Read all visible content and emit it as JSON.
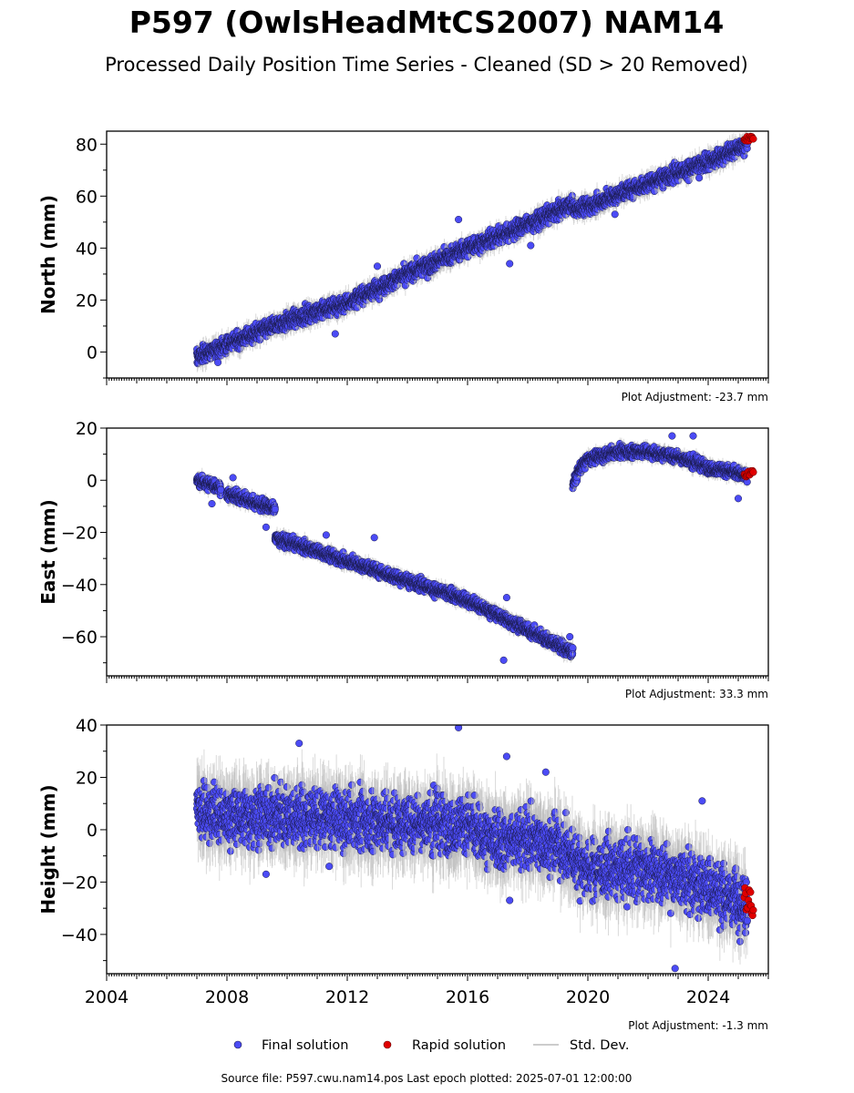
{
  "title": "P597 (OwlsHeadMtCS2007) NAM14",
  "subtitle": "Processed Daily Position Time Series - Cleaned (SD > 20 Removed)",
  "colors": {
    "final": "#4b4bf5",
    "final_edge": "#1a1a4a",
    "rapid": "#e00000",
    "stddev": "#bbbbbb"
  },
  "legend": {
    "final": "Final solution",
    "rapid": "Rapid solution",
    "stddev": "Std. Dev."
  },
  "footer": "Source file: P597.cwu.nam14.pos  Last epoch plotted: 2025-07-01 12:00:00",
  "chart_data": [
    {
      "type": "scatter",
      "ylabel": "North (mm)",
      "adjustment": "Plot Adjustment: -23.7 mm",
      "xlim": [
        2004,
        2026
      ],
      "ylim": [
        -10,
        85
      ],
      "yticks": [
        0,
        20,
        40,
        60,
        80
      ],
      "xticks": [
        2004,
        2008,
        2012,
        2016,
        2020,
        2024
      ],
      "show_xticklabels": false,
      "series": [
        {
          "segments": [
            {
              "x": [
                2007.0,
                2008.0,
                2010.0,
                2012.0,
                2014.0,
                2016.0,
                2018.0,
                2019.5
              ],
              "y": [
                -2,
                3,
                12,
                19,
                30,
                40,
                49,
                57
              ]
            },
            {
              "x": [
                2019.5,
                2020.0,
                2022.0,
                2024.0,
                2025.3
              ],
              "y": [
                55,
                56,
                65,
                73,
                80
              ]
            }
          ],
          "scatter": 2.2,
          "outliers": [
            [
              2015.7,
              51
            ],
            [
              2017.4,
              34
            ],
            [
              2018.1,
              41
            ],
            [
              2013.0,
              33
            ],
            [
              2011.6,
              7
            ],
            [
              2007.7,
              -4
            ],
            [
              2020.9,
              53
            ],
            [
              2023.7,
              67
            ]
          ]
        }
      ],
      "rapid": {
        "x": [
          2025.2,
          2025.5
        ],
        "y": [
          81,
          83
        ]
      }
    },
    {
      "type": "scatter",
      "ylabel": "East (mm)",
      "adjustment": "Plot Adjustment: 33.3 mm",
      "xlim": [
        2004,
        2026
      ],
      "ylim": [
        -75,
        20
      ],
      "yticks": [
        -60,
        -40,
        -20,
        0,
        20
      ],
      "xticks": [
        2004,
        2008,
        2012,
        2016,
        2020,
        2024
      ],
      "show_xticklabels": false,
      "series": [
        {
          "segments": [
            {
              "x": [
                2007.0,
                2007.8
              ],
              "y": [
                0,
                -3
              ]
            },
            {
              "x": [
                2008.0,
                2009.6
              ],
              "y": [
                -5,
                -11
              ]
            },
            {
              "x": [
                2009.6,
                2012.0,
                2016.0,
                2019.5
              ],
              "y": [
                -22,
                -31,
                -46,
                -66
              ]
            },
            {
              "x": [
                2019.5,
                2019.7,
                2020.0,
                2021.0,
                2022.0,
                2023.0,
                2024.0,
                2025.3
              ],
              "y": [
                -2,
                4,
                8,
                11,
                11,
                9,
                5,
                2
              ]
            }
          ],
          "scatter": 1.6,
          "outliers": [
            [
              2017.2,
              -69
            ],
            [
              2017.3,
              -45
            ],
            [
              2012.9,
              -22
            ],
            [
              2011.3,
              -21
            ],
            [
              2008.2,
              1
            ],
            [
              2009.3,
              -18
            ],
            [
              2019.4,
              -60
            ],
            [
              2022.8,
              17
            ],
            [
              2023.5,
              17
            ],
            [
              2025.0,
              -7
            ],
            [
              2007.5,
              -9
            ]
          ]
        }
      ],
      "rapid": {
        "x": [
          2025.2,
          2025.5
        ],
        "y": [
          1,
          4
        ]
      }
    },
    {
      "type": "scatter",
      "ylabel": "Height (mm)",
      "adjustment": "Plot Adjustment: -1.3 mm",
      "xlim": [
        2004,
        2026
      ],
      "ylim": [
        -55,
        40
      ],
      "yticks": [
        -40,
        -20,
        0,
        20,
        40
      ],
      "xticks": [
        2004,
        2008,
        2012,
        2016,
        2020,
        2024
      ],
      "xticklabels": [
        "2004",
        "2008",
        "2012",
        "2016",
        "2020",
        "2024"
      ],
      "show_xticklabels": true,
      "series": [
        {
          "segments": [
            {
              "x": [
                2007.0,
                2008.0,
                2010.0,
                2012.0,
                2014.0,
                2016.0,
                2017.0,
                2018.0,
                2019.0,
                2020.0,
                2022.0,
                2024.0,
                2025.3
              ],
              "y": [
                8,
                5,
                5,
                4,
                3,
                2,
                -5,
                -3,
                -6,
                -15,
                -15,
                -22,
                -28
              ]
            }
          ],
          "scatter": 7.5,
          "outliers": [
            [
              2010.4,
              33
            ],
            [
              2015.7,
              39
            ],
            [
              2017.3,
              28
            ],
            [
              2022.9,
              -53
            ],
            [
              2023.8,
              11
            ],
            [
              2017.4,
              -27
            ],
            [
              2018.6,
              22
            ],
            [
              2009.3,
              -17
            ],
            [
              2011.4,
              -14
            ]
          ]
        }
      ],
      "rapid": {
        "x": [
          2025.2,
          2025.5
        ],
        "y": [
          -33,
          -21
        ]
      }
    }
  ]
}
